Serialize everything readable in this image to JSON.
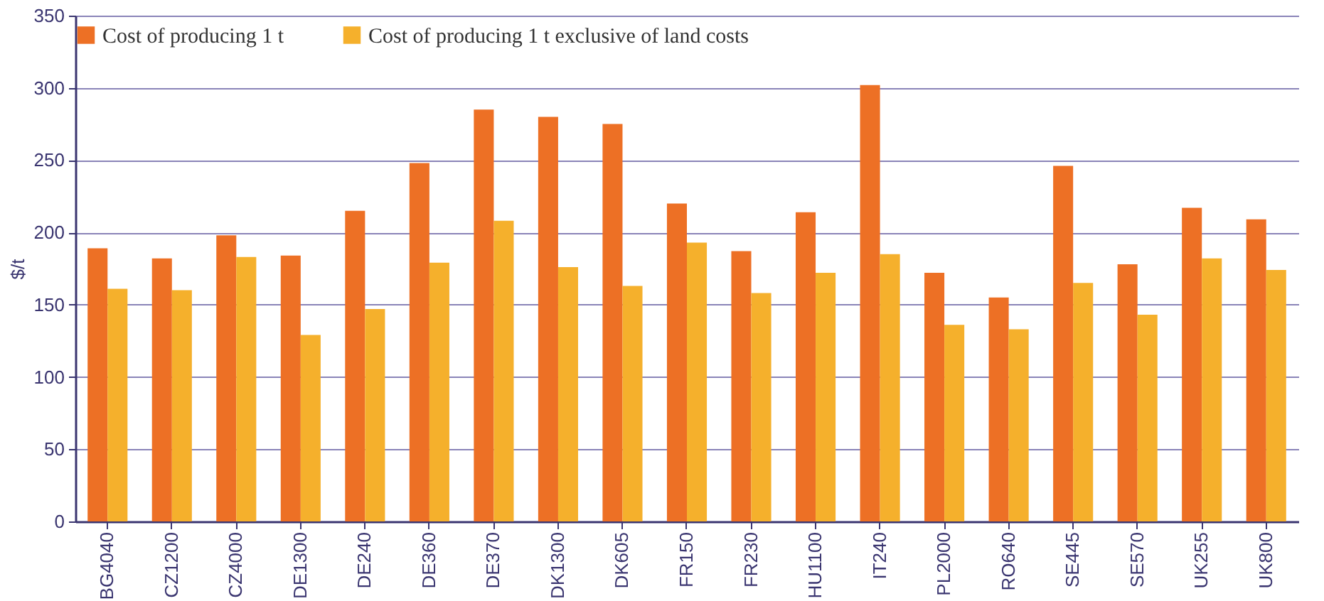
{
  "chart_data": {
    "type": "bar",
    "ylabel": "$/t",
    "categories": [
      "BG4040",
      "CZ1200",
      "CZ4000",
      "DE1300",
      "DE240",
      "DE360",
      "DE370",
      "DK1300",
      "DK605",
      "FR150",
      "FR230",
      "HU1100",
      "IT240",
      "PL2000",
      "RO640",
      "SE445",
      "SE570",
      "UK255",
      "UK800"
    ],
    "series": [
      {
        "name": "Cost of producing 1 t",
        "color": "#ed7025",
        "values": [
          189,
          182,
          198,
          184,
          215,
          248,
          285,
          280,
          275,
          220,
          187,
          214,
          302,
          172,
          155,
          246,
          178,
          217,
          209
        ]
      },
      {
        "name": "Cost of producing 1 t exclusive of land costs",
        "color": "#f5b02c",
        "values": [
          161,
          160,
          183,
          129,
          147,
          179,
          208,
          176,
          163,
          193,
          158,
          172,
          185,
          136,
          133,
          165,
          143,
          182,
          174
        ]
      }
    ],
    "ylim": [
      0,
      350
    ],
    "yticks": [
      0,
      50,
      100,
      150,
      200,
      250,
      300,
      350
    ],
    "grid": "y",
    "legend": "top"
  }
}
